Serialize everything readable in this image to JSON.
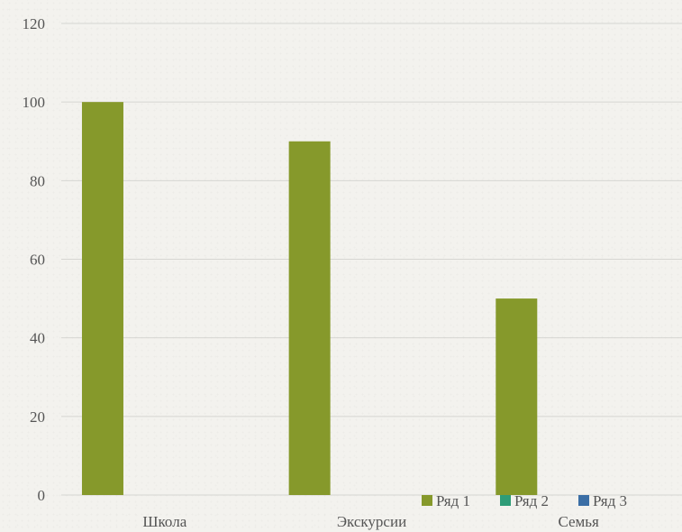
{
  "chart_data": {
    "type": "bar",
    "categories": [
      "Школа",
      "Экскурсии",
      "Семья"
    ],
    "series": [
      {
        "name": "Ряд 1",
        "values": [
          100,
          90,
          50
        ],
        "color": "#86992b"
      },
      {
        "name": "Ряд 2",
        "values": [
          0,
          0,
          0
        ],
        "color": "#2e9c77"
      },
      {
        "name": "Ряд 3",
        "values": [
          0,
          0,
          0
        ],
        "color": "#3b6ea5"
      }
    ],
    "ylim": [
      0,
      120
    ],
    "yticks": [
      0,
      20,
      40,
      60,
      80,
      100,
      120
    ],
    "grid": true,
    "legend": "bottom-right"
  }
}
